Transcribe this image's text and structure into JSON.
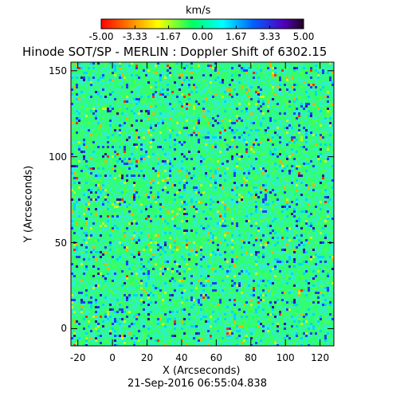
{
  "chart_data": {
    "type": "heatmap",
    "title": "Hinode SOT/SP - MERLIN : Doppler Shift of 6302.15",
    "xlabel": "X (Arcseconds)",
    "ylabel": "Y (Arcseconds)",
    "footer": "21-Sep-2016 06:55:04.838",
    "xlim": [
      -24,
      128
    ],
    "ylim": [
      -10,
      155
    ],
    "x_ticks": [
      {
        "value": -20,
        "label": "-20"
      },
      {
        "value": 0,
        "label": "0"
      },
      {
        "value": 20,
        "label": "20"
      },
      {
        "value": 40,
        "label": "40"
      },
      {
        "value": 60,
        "label": "60"
      },
      {
        "value": 80,
        "label": "80"
      },
      {
        "value": 100,
        "label": "100"
      },
      {
        "value": 120,
        "label": "120"
      }
    ],
    "y_ticks": [
      {
        "value": 0,
        "label": "0"
      },
      {
        "value": 50,
        "label": "50"
      },
      {
        "value": 100,
        "label": "100"
      },
      {
        "value": 150,
        "label": "150"
      }
    ],
    "colorbar": {
      "unit": "km/s",
      "range": [
        -5.0,
        5.0
      ],
      "ticks": [
        {
          "value": -5.0,
          "label": "-5.00"
        },
        {
          "value": -3.33,
          "label": "-3.33"
        },
        {
          "value": -1.67,
          "label": "-1.67"
        },
        {
          "value": 0.0,
          "label": "0.00"
        },
        {
          "value": 1.67,
          "label": "1.67"
        },
        {
          "value": 3.33,
          "label": "3.33"
        },
        {
          "value": 5.0,
          "label": "5.00"
        }
      ],
      "colors": [
        "#ff0000",
        "#ff8000",
        "#ffff00",
        "#00ff60",
        "#00ffff",
        "#0060ff",
        "#5000c0",
        "#200020"
      ]
    },
    "field_summary": {
      "dominant_value_kms": 0.0,
      "typical_spread_kms": 1.5,
      "colors": {
        "dominant": "#30ff70",
        "secondary": "#30f0c8",
        "positive_speckle": "#1840ff",
        "negative_speckle": "#ffb000"
      }
    }
  }
}
